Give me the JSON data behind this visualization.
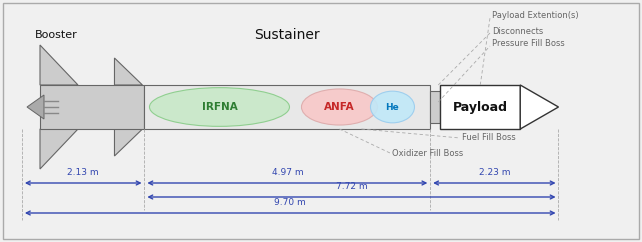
{
  "bg_color": "#f0f0f0",
  "border_color": "#aaaaaa",
  "arrow_color": "#3347b0",
  "section_colors": {
    "irfna": "#c8e8c8",
    "anfa": "#f8c8c8",
    "he": "#c0e8f8",
    "payload_box": "#ffffff",
    "booster": "#cccccc",
    "sustainer_body": "#e8e8e8",
    "connector": "#cccccc"
  },
  "labels": {
    "booster": "Booster",
    "sustainer": "Sustainer",
    "irfna": "IRFNA",
    "anfa": "ANFA",
    "he": "He",
    "payload": "Payload",
    "payload_ext": "Payload Extention(s)",
    "disconnects": "Disconnects",
    "pressure_fill": "Pressure Fill Boss",
    "fuel_fill": "Fuel Fill Boss",
    "oxidizer_fill": "Oxidizer Fill Boss"
  },
  "dimensions": {
    "booster_w": "2.13 m",
    "sustainer_w": "4.97 m",
    "sustainer_payload_w": "7.72 m",
    "total_w": "9.70 m",
    "payload_w": "2.23 m"
  },
  "text_color_irfna": "#2e7d32",
  "text_color_anfa": "#c62828",
  "text_color_he": "#0277bd",
  "text_color_payload": "#111111",
  "text_color_booster": "#111111",
  "text_color_sustainer": "#111111",
  "text_color_annotations": "#666666",
  "figsize": [
    6.42,
    2.42
  ],
  "dpi": 100
}
